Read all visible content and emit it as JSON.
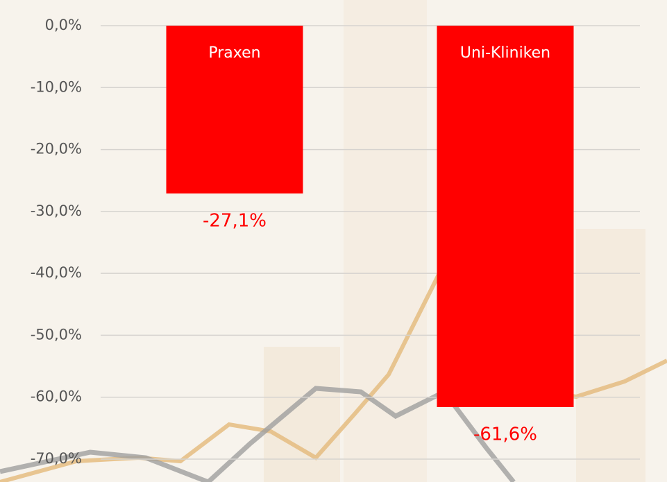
{
  "chart_data": {
    "type": "bar",
    "categories": [
      "Praxen",
      "Uni-Kliniken"
    ],
    "values": [
      -27.1,
      -61.6
    ],
    "value_labels": [
      "-27,1%",
      "-61,6%"
    ],
    "color": "#ff0000",
    "ylim": [
      -70,
      0
    ],
    "yticks": [
      {
        "value": 0,
        "label": "0,0%"
      },
      {
        "value": -10,
        "label": "-10,0%"
      },
      {
        "value": -20,
        "label": "-20,0%"
      },
      {
        "value": -30,
        "label": "-30,0%"
      },
      {
        "value": -40,
        "label": "-40,0%"
      },
      {
        "value": -50,
        "label": "-50,0%"
      },
      {
        "value": -60,
        "label": "-60,0%"
      },
      {
        "value": -70,
        "label": "-70,0%"
      }
    ],
    "grid": true
  }
}
